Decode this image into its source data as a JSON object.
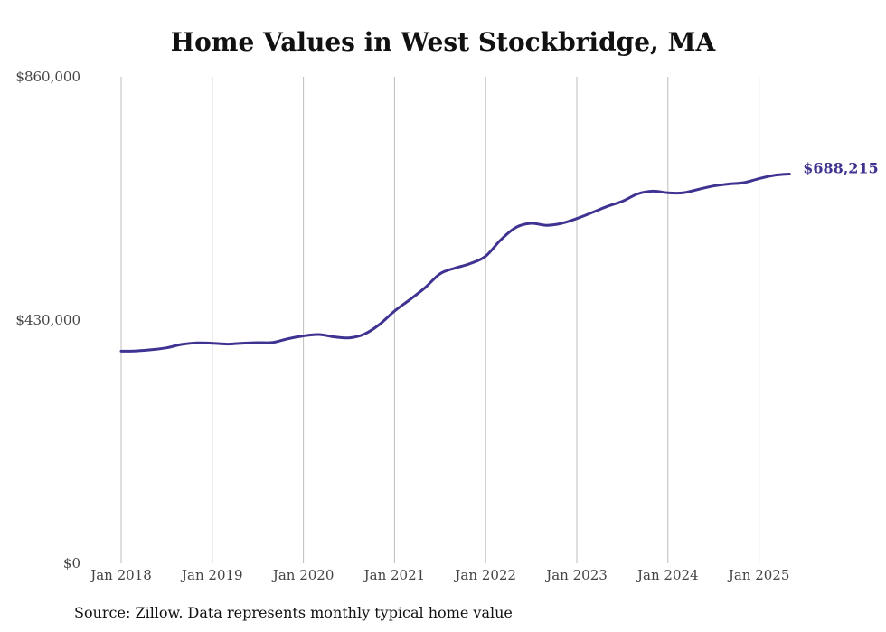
{
  "chart_data": {
    "type": "line",
    "title": "Home Values in West Stockbridge, MA",
    "source_note": "Source: Zillow. Data represents monthly typical home value",
    "xlabel": "",
    "ylabel": "",
    "x_tick_labels": [
      "Jan 2018",
      "Jan 2019",
      "Jan 2020",
      "Jan 2021",
      "Jan 2022",
      "Jan 2023",
      "Jan 2024",
      "Jan 2025"
    ],
    "y_tick_labels": [
      "$0",
      "$430,000",
      "$860,000"
    ],
    "y_ticks": [
      0,
      430000,
      860000
    ],
    "ylim": [
      0,
      860000
    ],
    "xlim": [
      "2018-01",
      "2025-05"
    ],
    "grid": "vertical lines at each January",
    "line_color": "#3f3391",
    "end_label": "$688,215",
    "series": [
      {
        "points": [
          [
            "2018-01",
            375000
          ],
          [
            "2018-03",
            375500
          ],
          [
            "2018-05",
            377500
          ],
          [
            "2018-07",
            381000
          ],
          [
            "2018-09",
            387000
          ],
          [
            "2018-11",
            389500
          ],
          [
            "2019-01",
            389000
          ],
          [
            "2019-03",
            387500
          ],
          [
            "2019-05",
            389000
          ],
          [
            "2019-07",
            390000
          ],
          [
            "2019-09",
            390500
          ],
          [
            "2019-11",
            397000
          ],
          [
            "2020-01",
            402000
          ],
          [
            "2020-03",
            404500
          ],
          [
            "2020-05",
            400500
          ],
          [
            "2020-07",
            398500
          ],
          [
            "2020-09",
            405000
          ],
          [
            "2020-11",
            422000
          ],
          [
            "2021-01",
            446000
          ],
          [
            "2021-03",
            466000
          ],
          [
            "2021-05",
            487000
          ],
          [
            "2021-07",
            512000
          ],
          [
            "2021-09",
            522000
          ],
          [
            "2021-11",
            530000
          ],
          [
            "2022-01",
            543000
          ],
          [
            "2022-03",
            572000
          ],
          [
            "2022-05",
            594000
          ],
          [
            "2022-07",
            601000
          ],
          [
            "2022-09",
            597500
          ],
          [
            "2022-11",
            601000
          ],
          [
            "2023-01",
            609500
          ],
          [
            "2023-03",
            620000
          ],
          [
            "2023-05",
            631000
          ],
          [
            "2023-07",
            640000
          ],
          [
            "2023-09",
            653000
          ],
          [
            "2023-11",
            658000
          ],
          [
            "2024-01",
            655000
          ],
          [
            "2024-03",
            655000
          ],
          [
            "2024-05",
            661000
          ],
          [
            "2024-07",
            667000
          ],
          [
            "2024-09",
            670500
          ],
          [
            "2024-11",
            673000
          ],
          [
            "2025-01",
            680000
          ],
          [
            "2025-03",
            686000
          ],
          [
            "2025-05",
            688215
          ]
        ]
      }
    ]
  }
}
